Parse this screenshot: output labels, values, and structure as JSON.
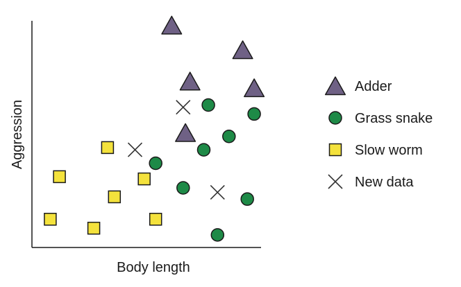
{
  "chart_data": {
    "type": "scatter",
    "title": "",
    "xlabel": "Body length",
    "ylabel": "Aggression",
    "xlim": [
      0,
      100
    ],
    "ylim": [
      0,
      100
    ],
    "grid": false,
    "ticks": false,
    "legend_position": "right",
    "series": [
      {
        "name": "Adder",
        "marker": "triangle",
        "color": "#6f6185",
        "points": [
          {
            "x": 61,
            "y": 98
          },
          {
            "x": 92,
            "y": 87
          },
          {
            "x": 69,
            "y": 73
          },
          {
            "x": 97,
            "y": 70
          },
          {
            "x": 67,
            "y": 50
          }
        ]
      },
      {
        "name": "Grass snake",
        "marker": "circle",
        "color": "#1e8a47",
        "points": [
          {
            "x": 77,
            "y": 63
          },
          {
            "x": 97,
            "y": 59
          },
          {
            "x": 86,
            "y": 49
          },
          {
            "x": 75,
            "y": 43
          },
          {
            "x": 54,
            "y": 37
          },
          {
            "x": 66,
            "y": 26
          },
          {
            "x": 94,
            "y": 21
          },
          {
            "x": 81,
            "y": 5
          }
        ]
      },
      {
        "name": "Slow worm",
        "marker": "square",
        "color": "#f4e23c",
        "points": [
          {
            "x": 33,
            "y": 44
          },
          {
            "x": 12,
            "y": 31
          },
          {
            "x": 49,
            "y": 30
          },
          {
            "x": 36,
            "y": 22
          },
          {
            "x": 8,
            "y": 12
          },
          {
            "x": 27,
            "y": 8
          },
          {
            "x": 54,
            "y": 12
          }
        ]
      },
      {
        "name": "New data",
        "marker": "x",
        "color": "#333333",
        "points": [
          {
            "x": 66,
            "y": 62
          },
          {
            "x": 45,
            "y": 43
          },
          {
            "x": 81,
            "y": 24
          }
        ]
      }
    ]
  }
}
